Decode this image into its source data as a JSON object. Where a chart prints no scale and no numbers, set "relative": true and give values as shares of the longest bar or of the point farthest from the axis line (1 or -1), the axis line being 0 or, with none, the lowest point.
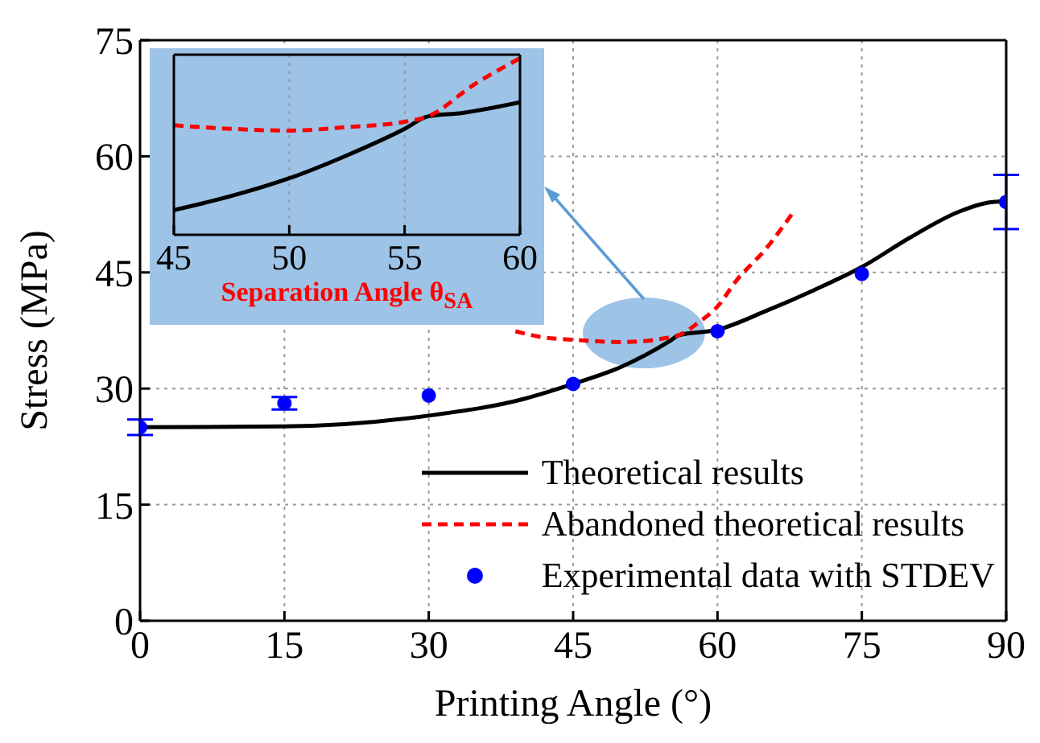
{
  "chart_data": [
    {
      "type": "line",
      "xlabel": "Printing Angle (°)",
      "ylabel": "Stress (MPa)",
      "xlim": [
        0,
        90
      ],
      "xticks": [
        0,
        15,
        30,
        45,
        60,
        75,
        90
      ],
      "ylim": [
        0,
        75
      ],
      "yticks": [
        0,
        15,
        30,
        45,
        60,
        75
      ],
      "grid": true,
      "legend": "bottom right",
      "series": [
        {
          "name": "Theoretical results",
          "color": "#000000",
          "line_style": "solid",
          "x": [
            0,
            15,
            30,
            40,
            45,
            50,
            55,
            56,
            60,
            65,
            70,
            75,
            80,
            85,
            88,
            90
          ],
          "values": [
            25,
            25.1,
            26.5,
            28.7,
            30.6,
            32.8,
            36.1,
            36.9,
            37.6,
            40,
            42.7,
            45.7,
            49.5,
            52.8,
            54,
            54.2
          ]
        },
        {
          "name": "Abandoned theoretical results",
          "color": "#ff0000",
          "line_style": "dashed",
          "x": [
            39,
            42,
            45,
            50,
            55,
            56,
            58,
            60,
            62,
            65,
            68
          ],
          "values": [
            37.4,
            36.6,
            36.3,
            36,
            36.6,
            36.9,
            38.5,
            40.6,
            44,
            48,
            53
          ]
        },
        {
          "name": "Experimental data with STDEV",
          "type": "scatter",
          "color": "#0000ff",
          "marker": "circle",
          "x": [
            0,
            15,
            30,
            45,
            60,
            75,
            90
          ],
          "values": [
            25,
            28.1,
            29.1,
            30.6,
            37.4,
            44.8,
            54.1
          ],
          "errors": [
            1,
            0.8,
            null,
            null,
            null,
            null,
            3.5
          ]
        }
      ]
    },
    {
      "type": "line",
      "xlabel": "Separation Angle θ$_{SA}$",
      "xlim": [
        45,
        60
      ],
      "xticks": [
        45,
        50,
        55,
        60
      ],
      "relative": true,
      "grid": true,
      "series": [
        {
          "color": "#000000",
          "line_style": "solid",
          "x": [
            45,
            47.5,
            50,
            52.5,
            55,
            56,
            57.5,
            60
          ],
          "values": [
            0.14,
            0.22,
            0.32,
            0.45,
            0.6,
            0.67,
            0.69,
            0.75
          ]
        },
        {
          "color": "#ff0000",
          "line_style": "dashed",
          "x": [
            45,
            47.5,
            50,
            52.5,
            55,
            56,
            58,
            60
          ],
          "values": [
            0.62,
            0.6,
            0.59,
            0.61,
            0.64,
            0.67,
            0.85,
            1
          ]
        }
      ]
    }
  ]
}
